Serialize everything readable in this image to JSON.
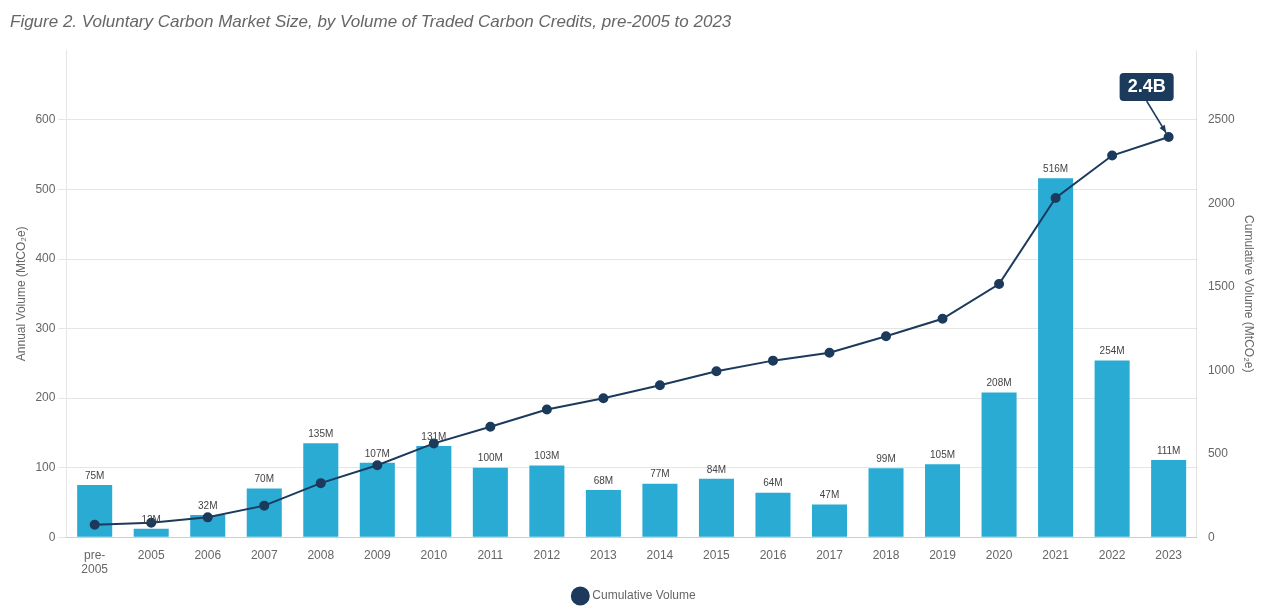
{
  "chart_data": {
    "type": "bar",
    "title": "Figure 2. Voluntary Carbon Market Size, by Volume of Traded Carbon Credits, pre-2005 to 2023",
    "categories": [
      "pre-\n2005",
      "2005",
      "2006",
      "2007",
      "2008",
      "2009",
      "2010",
      "2011",
      "2012",
      "2013",
      "2014",
      "2015",
      "2016",
      "2017",
      "2018",
      "2019",
      "2020",
      "2021",
      "2022",
      "2023"
    ],
    "series": [
      {
        "type": "bar",
        "color": "#29ABD4",
        "data_labels": true,
        "values": [
          75,
          12,
          32,
          70,
          135,
          107,
          131,
          100,
          103,
          68,
          77,
          84,
          64,
          47,
          99,
          105,
          208,
          516,
          254,
          111
        ],
        "value_labels": [
          "75M",
          "12M",
          "32M",
          "70M",
          "135M",
          "107M",
          "131M",
          "100M",
          "103M",
          "68M",
          "77M",
          "84M",
          "64M",
          "47M",
          "99M",
          "105M",
          "208M",
          "516M",
          "254M",
          "111M"
        ]
      },
      {
        "type": "line",
        "name": "Cumulative Volume",
        "axis": "y2",
        "color": "#1B3A5C",
        "marker": "o",
        "values": [
          75,
          87,
          119,
          189,
          324,
          431,
          562,
          662,
          765,
          833,
          910,
          994,
          1058,
          1105,
          1204,
          1309,
          1517,
          2033,
          2287,
          2398
        ]
      }
    ],
    "ylabel": "Annual Volume (MtCO₂e)",
    "y2label": "Cumulative Volume (MtCO₂e)",
    "ylim": [
      0,
      700
    ],
    "yticks": [
      0,
      100,
      200,
      300,
      400,
      500,
      600
    ],
    "y2lim": [
      0,
      2917
    ],
    "y2ticks": [
      0,
      500,
      1000,
      1500,
      2000,
      2500
    ],
    "grid": true,
    "legend": "bottom",
    "annotations": [
      {
        "text": "2.4B",
        "x": 19,
        "y": 2398,
        "axis": "y2"
      }
    ]
  }
}
